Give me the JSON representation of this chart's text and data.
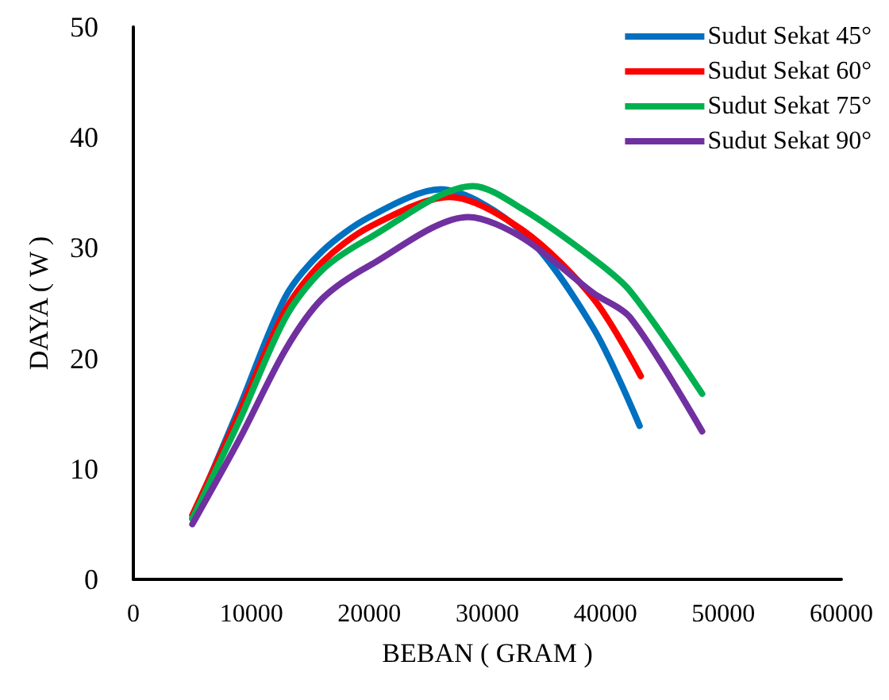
{
  "chart_data": {
    "type": "line",
    "xlabel": "BEBAN ( GRAM )",
    "ylabel": "DAYA ( W )",
    "xlim": [
      0,
      60000
    ],
    "xticks": [
      0,
      {
        "value": 10000,
        "label": "10000"
      },
      {
        "value": 20000,
        "label": "20000"
      },
      {
        "value": 30000,
        "label": "30000"
      },
      {
        "value": 40000,
        "label": "40000"
      },
      {
        "value": 50000,
        "label": "50000"
      },
      {
        "value": 60000,
        "label": "60000"
      }
    ],
    "ylim": [
      0,
      50
    ],
    "yticks": [
      0,
      10,
      20,
      30,
      40,
      50
    ],
    "grid": false,
    "legend": "top right",
    "marker": "none",
    "line_style": "solid",
    "series": [
      {
        "name": "Sudut Sekat 45°",
        "color": "#0070c0",
        "x": [
          5000,
          9000,
          12900,
          16000,
          20000,
          26000,
          33000,
          39000,
          42900
        ],
        "values": [
          5.5,
          15.6,
          25.6,
          29.7,
          32.8,
          35.3,
          31.4,
          22.7,
          13.9
        ]
      },
      {
        "name": "Sudut Sekat 60°",
        "color": "#ff0000",
        "x": [
          5000,
          9000,
          12900,
          16000,
          20000,
          26800,
          33000,
          39000,
          43000
        ],
        "values": [
          5.8,
          15.1,
          24.4,
          28.7,
          31.9,
          34.6,
          31.6,
          25.4,
          18.4
        ]
      },
      {
        "name": "Sudut Sekat 75°",
        "color": "#00b050",
        "x": [
          5000,
          9000,
          12900,
          16000,
          20000,
          28800,
          33000,
          39000,
          42100,
          48200
        ],
        "values": [
          5.5,
          14.4,
          23.7,
          28.0,
          30.9,
          35.6,
          33.5,
          29.0,
          26.1,
          16.8
        ]
      },
      {
        "name": "Sudut Sekat 90°",
        "color": "#7030a0",
        "x": [
          5000,
          9000,
          12900,
          16000,
          20000,
          28400,
          33000,
          39000,
          42100,
          48200
        ],
        "values": [
          5.0,
          12.7,
          20.8,
          25.4,
          28.4,
          32.8,
          30.9,
          25.9,
          23.7,
          13.4
        ]
      }
    ]
  }
}
